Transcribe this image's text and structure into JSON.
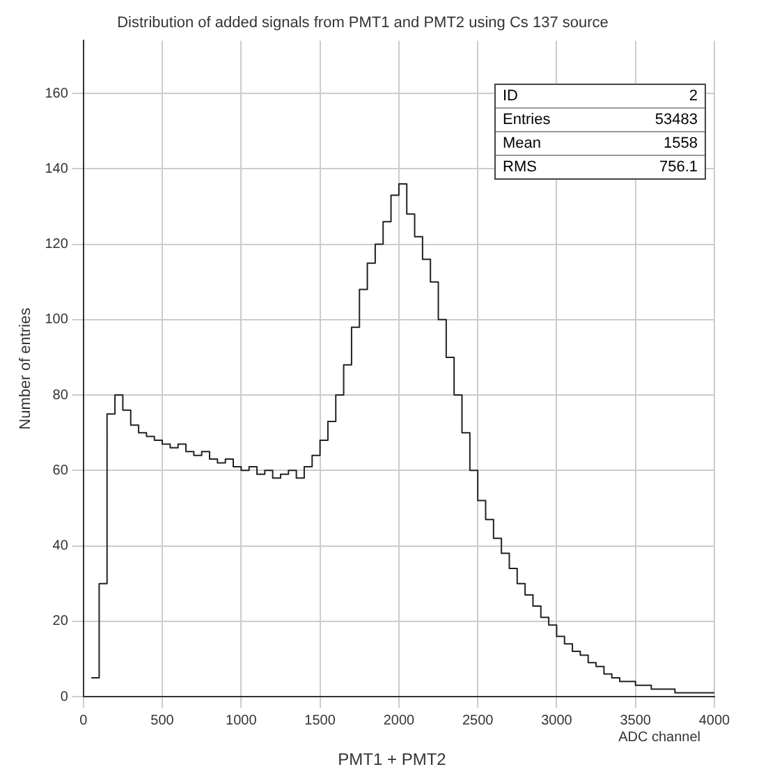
{
  "chart_data": {
    "type": "histogram",
    "title": "Distribution of added signals from PMT1 and PMT2 using Cs 137 source",
    "xlabel": "PMT1 + PMT2",
    "ylabel": "Number of entries",
    "bins": [
      50,
      100,
      150,
      200,
      250,
      300,
      350,
      400,
      450,
      500,
      550,
      600,
      650,
      700,
      750,
      800,
      850,
      900,
      950,
      1000,
      1050,
      1100,
      1150,
      1200,
      1250,
      1300,
      1350,
      1400,
      1450,
      1500,
      1550,
      1600,
      1650,
      1700,
      1750,
      1800,
      1850,
      1900,
      1950,
      2000,
      2050,
      2100,
      2150,
      2200,
      2250,
      2300,
      2350,
      2400,
      2450,
      2500,
      2550,
      2600,
      2650,
      2700,
      2750,
      2800,
      2850,
      2900,
      2950,
      3000,
      3050,
      3100,
      3150,
      3200,
      3250,
      3300,
      3350,
      3400,
      3450,
      3500,
      3550,
      3600,
      3650,
      3700,
      3750,
      3800,
      3850,
      3900,
      3950,
      4000
    ],
    "values": [
      5,
      30,
      75,
      80,
      76,
      72,
      70,
      69,
      68,
      67,
      66,
      67,
      65,
      64,
      65,
      63,
      62,
      63,
      61,
      60,
      61,
      59,
      60,
      58,
      59,
      60,
      58,
      61,
      64,
      68,
      73,
      80,
      88,
      98,
      108,
      115,
      120,
      126,
      133,
      136,
      128,
      122,
      116,
      110,
      100,
      90,
      80,
      70,
      60,
      52,
      47,
      42,
      38,
      34,
      30,
      27,
      24,
      21,
      19,
      16,
      14,
      12,
      11,
      9,
      8,
      6,
      5,
      4,
      4,
      3,
      3,
      2,
      2,
      2,
      1,
      1,
      1,
      1,
      1
    ],
    "color": "#222222",
    "xlim": [
      0,
      4000
    ],
    "xticks": [
      0,
      500,
      1000,
      1500,
      2000,
      2500,
      3000,
      3500,
      4000
    ],
    "ylim": [
      0,
      174
    ],
    "yticks": [
      0,
      20,
      40,
      60,
      80,
      100,
      120,
      140,
      160
    ],
    "grid": true,
    "legend": false,
    "annotations": [
      "ID 2",
      "Entries 53483",
      "Mean 1558",
      "RMS 756.1",
      "ADC channel"
    ]
  }
}
